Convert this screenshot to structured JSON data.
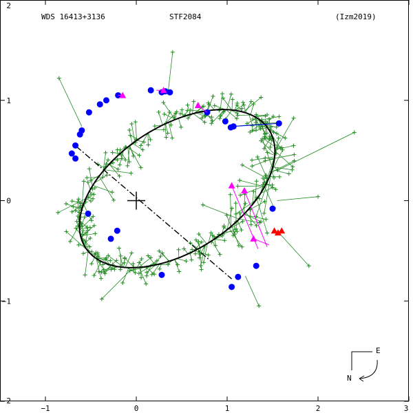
{
  "header": {
    "left": "WDS 16413+3136",
    "center": "STF2084",
    "right": "(Izm2019)"
  },
  "compass": {
    "east": "E",
    "north": "N"
  },
  "colors": {
    "frame": "#000000",
    "orbit": "#000000",
    "node_line": "#000000",
    "micrometric": "#228B22",
    "speckle": "#0000FF",
    "interferometric": "#FF00FF",
    "recent": "#FF0000",
    "oc_link": "#228B22"
  },
  "chart_data": {
    "type": "scatter",
    "title": "STF2084",
    "xlim": [
      -1.5,
      3
    ],
    "ylim": [
      -2,
      2
    ],
    "x_ticks": [
      -1,
      0,
      1,
      2,
      3
    ],
    "y_ticks": [
      -2,
      -1,
      0,
      1,
      2
    ],
    "x_tick_labels": [
      "−1",
      "0",
      "1",
      "2",
      "3"
    ],
    "y_tick_labels": [
      "−2",
      "−1",
      "0",
      "1",
      "2"
    ],
    "grid": false,
    "primary_star": [
      0,
      0
    ],
    "orbit": {
      "center": [
        0.45,
        0.12
      ],
      "semi_major": 1.17,
      "semi_minor": 0.64,
      "rotation_deg": 28
    },
    "line_of_nodes": {
      "from": [
        -0.66,
        0.54
      ],
      "to": [
        1.05,
        -0.78
      ]
    },
    "speckle_points": [
      [
        -0.71,
        0.47
      ],
      [
        -0.67,
        0.42
      ],
      [
        -0.67,
        0.55
      ],
      [
        -0.62,
        0.66
      ],
      [
        -0.6,
        0.7
      ],
      [
        -0.52,
        0.88
      ],
      [
        -0.4,
        0.96
      ],
      [
        -0.33,
        1.0
      ],
      [
        -0.2,
        1.05
      ],
      [
        0.16,
        1.1
      ],
      [
        0.28,
        1.08
      ],
      [
        0.32,
        1.09
      ],
      [
        0.37,
        1.08
      ],
      [
        0.78,
        0.88
      ],
      [
        0.98,
        0.79
      ],
      [
        1.04,
        0.73
      ],
      [
        1.07,
        0.74
      ],
      [
        1.57,
        0.77
      ],
      [
        1.5,
        -0.08
      ],
      [
        1.32,
        -0.65
      ],
      [
        1.12,
        -0.76
      ],
      [
        1.05,
        -0.86
      ],
      [
        0.28,
        -0.74
      ],
      [
        -0.21,
        -0.3
      ],
      [
        -0.28,
        -0.38
      ],
      [
        -0.53,
        -0.13
      ]
    ],
    "interferometric_points": [
      {
        "obs": [
          1.05,
          0.15
        ],
        "pred": [
          1.34,
          -0.48
        ]
      },
      {
        "obs": [
          1.19,
          0.1
        ],
        "pred": [
          1.44,
          -0.46
        ]
      },
      {
        "obs": [
          1.29,
          -0.38
        ],
        "pred": [
          1.46,
          -0.44
        ]
      },
      {
        "obs": [
          0.68,
          0.95
        ],
        "pred": [
          0.78,
          0.88
        ]
      },
      {
        "obs": [
          -0.15,
          1.05
        ],
        "pred": [
          -0.2,
          1.05
        ]
      },
      {
        "obs": [
          0.3,
          1.1
        ],
        "pred": [
          0.22,
          1.1
        ]
      }
    ],
    "recent_points": [
      [
        1.52,
        -0.3
      ],
      [
        1.56,
        -0.32
      ],
      [
        1.6,
        -0.3
      ]
    ],
    "micrometric_outliers": [
      {
        "obs": [
          2.4,
          0.68
        ],
        "pred": [
          1.55,
          0.3
        ]
      },
      {
        "obs": [
          -0.85,
          1.22
        ],
        "pred": [
          -0.6,
          0.74
        ]
      },
      {
        "obs": [
          1.58,
          0.78
        ],
        "pred": [
          1.05,
          0.74
        ]
      },
      {
        "obs": [
          -0.38,
          -0.98
        ],
        "pred": [
          -0.05,
          -0.68
        ]
      },
      {
        "obs": [
          1.9,
          -0.65
        ],
        "pred": [
          1.55,
          -0.3
        ]
      },
      {
        "obs": [
          1.35,
          -1.05
        ],
        "pred": [
          1.2,
          -0.75
        ]
      },
      {
        "obs": [
          0.4,
          1.48
        ],
        "pred": [
          0.35,
          1.08
        ]
      },
      {
        "obs": [
          2.0,
          0.04
        ],
        "pred": [
          1.55,
          0.0
        ]
      }
    ]
  }
}
